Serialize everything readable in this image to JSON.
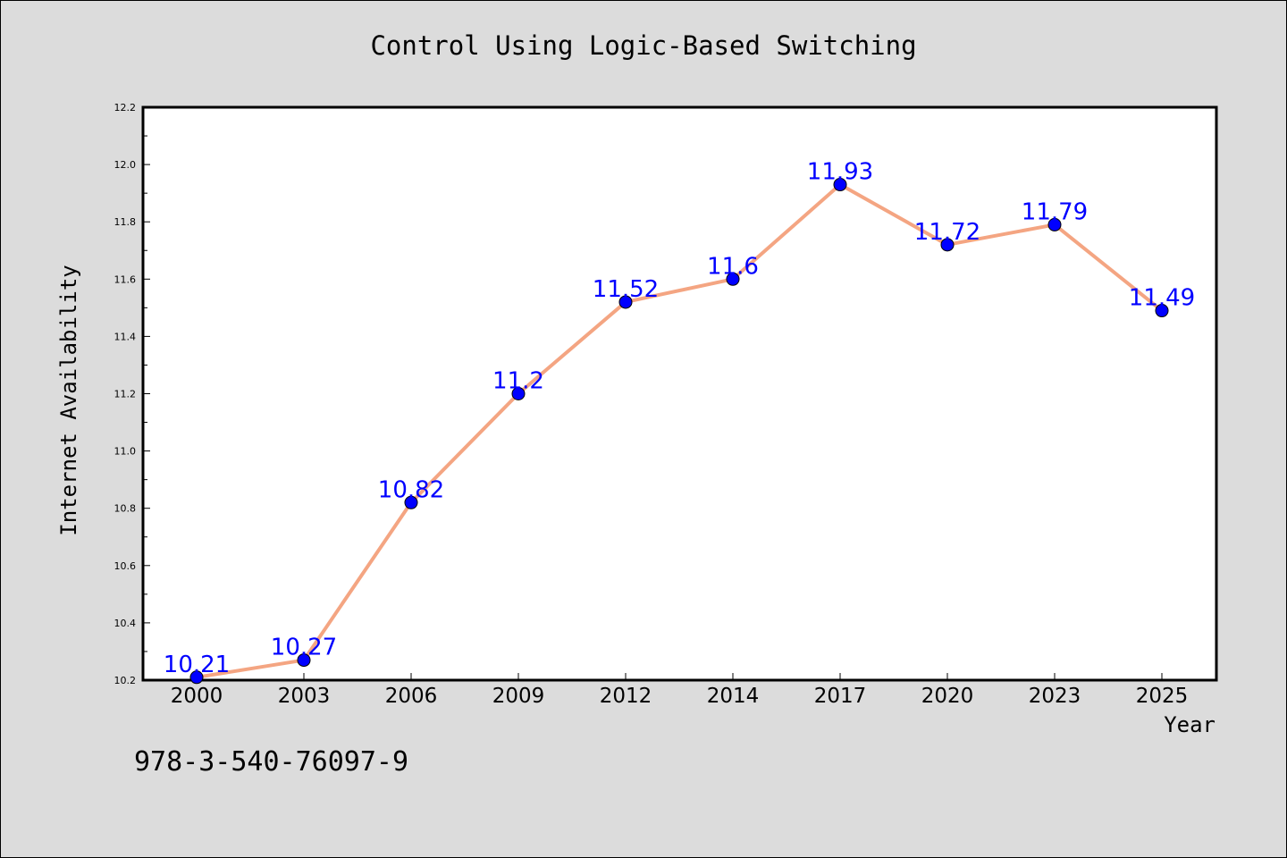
{
  "chart_data": {
    "type": "line",
    "title": "Control Using Logic-Based Switching",
    "xlabel": "Year",
    "ylabel": "Internet Availability",
    "categories": [
      "2000",
      "2003",
      "2006",
      "2009",
      "2012",
      "2014",
      "2017",
      "2020",
      "2023",
      "2025"
    ],
    "series": [
      {
        "values": [
          10.21,
          10.27,
          10.82,
          11.2,
          11.52,
          11.6,
          11.93,
          11.72,
          11.79,
          11.49
        ],
        "labels": [
          "10.21",
          "10.27",
          "10.82",
          "11.2",
          "11.52",
          "11.6",
          "11.93",
          "11.72",
          "11.79",
          "11.49"
        ],
        "line_color": "#f4a582",
        "marker_color": "#0000ff"
      }
    ],
    "ylim": [
      10.2,
      12.2
    ],
    "yticks": [
      "10.2",
      "10.4",
      "10.6",
      "10.8",
      "11.0",
      "11.2",
      "11.4",
      "11.6",
      "11.8",
      "12.0",
      "12.2"
    ],
    "grid": false,
    "legend": "none"
  },
  "footnote": "978-3-540-76097-9",
  "colors": {
    "background": "#dcdcdc",
    "plot_area": "#ffffff",
    "data_label": "#0000ff"
  }
}
